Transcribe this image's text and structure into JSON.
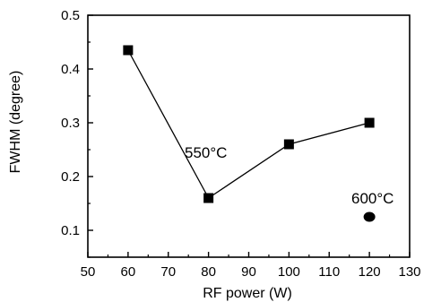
{
  "chart_data": {
    "type": "scatter",
    "xlabel": "RF power (W)",
    "ylabel": "FWHM (degree)",
    "xlim": [
      50,
      130
    ],
    "ylim": [
      0.05,
      0.5
    ],
    "x_ticks": [
      "50",
      "60",
      "70",
      "80",
      "90",
      "100",
      "110",
      "120",
      "130"
    ],
    "y_ticks": [
      "0.1",
      "0.2",
      "0.3",
      "0.4",
      "0.5"
    ],
    "grid": false,
    "series": [
      {
        "name": "550°C",
        "marker": "square",
        "line": true,
        "x": [
          60,
          80,
          100,
          120
        ],
        "y": [
          0.435,
          0.16,
          0.26,
          0.3
        ]
      },
      {
        "name": "600°C",
        "marker": "circle",
        "line": false,
        "x": [
          120
        ],
        "y": [
          0.125
        ]
      }
    ],
    "annotations": [
      "550°C",
      "600°C"
    ]
  }
}
